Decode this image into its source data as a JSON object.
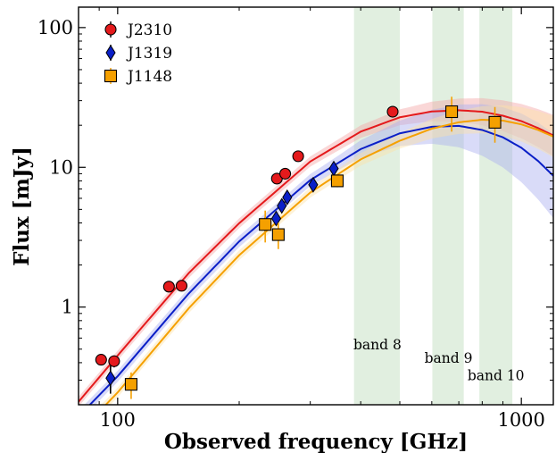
{
  "chart_data": {
    "type": "scatter",
    "xlabel": "Observed frequency [GHz]",
    "ylabel": "Flux [mJy]",
    "xscale": "log",
    "yscale": "log",
    "xlim": [
      80,
      1200
    ],
    "ylim": [
      0.2,
      140
    ],
    "x_ticks": [
      {
        "value": 100,
        "label": "100"
      },
      {
        "value": 1000,
        "label": "1000"
      }
    ],
    "y_ticks": [
      {
        "value": 1,
        "label": "1"
      },
      {
        "value": 10,
        "label": "10"
      },
      {
        "value": 100,
        "label": "100"
      }
    ],
    "legend_position": "top-left",
    "bands": [
      {
        "name": "band 8",
        "x_range": [
          385,
          500
        ],
        "label_x": 440,
        "label_y": 0.5
      },
      {
        "name": "band 9",
        "x_range": [
          602,
          720
        ],
        "label_x": 660,
        "label_y": 0.4
      },
      {
        "name": "band 10",
        "x_range": [
          787,
          950
        ],
        "label_x": 865,
        "label_y": 0.3
      }
    ],
    "series": [
      {
        "name": "J2310",
        "marker": "circle",
        "color": "#e41a1c",
        "points": [
          {
            "x": 91,
            "y": 0.42,
            "yerr": 0.03
          },
          {
            "x": 98,
            "y": 0.41,
            "yerr": 0.04
          },
          {
            "x": 134,
            "y": 1.4,
            "yerr": 0.08
          },
          {
            "x": 144,
            "y": 1.42,
            "yerr": 0.08
          },
          {
            "x": 248,
            "y": 8.3,
            "yerr": 0.4
          },
          {
            "x": 260,
            "y": 9.0,
            "yerr": 0.4
          },
          {
            "x": 280,
            "y": 12.0,
            "yerr": 0.5
          },
          {
            "x": 480,
            "y": 25.0,
            "yerr": 1.0
          }
        ],
        "model": [
          [
            80,
            0.21
          ],
          [
            100,
            0.45
          ],
          [
            150,
            1.75
          ],
          [
            200,
            3.98
          ],
          [
            300,
            11.0
          ],
          [
            400,
            18.0
          ],
          [
            500,
            22.8
          ],
          [
            600,
            25.1
          ],
          [
            700,
            25.6
          ],
          [
            800,
            25.0
          ],
          [
            900,
            23.4
          ],
          [
            1000,
            21.4
          ],
          [
            1100,
            19.1
          ],
          [
            1200,
            16.9
          ]
        ]
      },
      {
        "name": "J1319",
        "marker": "diamond",
        "color": "#0a1fc7",
        "points": [
          {
            "x": 96,
            "y": 0.31,
            "yerr": 0.07
          },
          {
            "x": 232,
            "y": 3.9,
            "yerr": 0.3
          },
          {
            "x": 247,
            "y": 4.3,
            "yerr": 0.3
          },
          {
            "x": 255,
            "y": 5.3,
            "yerr": 0.3
          },
          {
            "x": 263,
            "y": 6.1,
            "yerr": 0.3
          },
          {
            "x": 305,
            "y": 7.5,
            "yerr": 0.4
          },
          {
            "x": 343,
            "y": 9.8,
            "yerr": 0.4
          }
        ],
        "model": [
          [
            80,
            0.165
          ],
          [
            100,
            0.32
          ],
          [
            150,
            1.25
          ],
          [
            200,
            2.95
          ],
          [
            300,
            8.1
          ],
          [
            400,
            13.5
          ],
          [
            500,
            17.5
          ],
          [
            600,
            19.5
          ],
          [
            700,
            19.8
          ],
          [
            800,
            18.5
          ],
          [
            900,
            16.4
          ],
          [
            1000,
            13.8
          ],
          [
            1100,
            11.1
          ],
          [
            1200,
            8.7
          ]
        ]
      },
      {
        "name": "J1148",
        "marker": "square",
        "color": "#f5a000",
        "points": [
          {
            "x": 108,
            "y": 0.28,
            "yerr": 0.06
          },
          {
            "x": 232,
            "y": 3.9,
            "yerr": 1.0
          },
          {
            "x": 250,
            "y": 3.3,
            "yerr": 0.7
          },
          {
            "x": 350,
            "y": 8.0,
            "yerr": 0.8
          },
          {
            "x": 672,
            "y": 25.0,
            "yerr": 7.0
          },
          {
            "x": 860,
            "y": 21.0,
            "yerr": 6.0
          }
        ],
        "model": [
          [
            80,
            0.125
          ],
          [
            100,
            0.245
          ],
          [
            150,
            0.98
          ],
          [
            200,
            2.35
          ],
          [
            300,
            6.6
          ],
          [
            400,
            11.4
          ],
          [
            500,
            15.5
          ],
          [
            600,
            18.9
          ],
          [
            700,
            21.0
          ],
          [
            800,
            21.9
          ],
          [
            900,
            21.6
          ],
          [
            1000,
            20.3
          ],
          [
            1100,
            18.5
          ],
          [
            1200,
            16.6
          ]
        ]
      }
    ],
    "band_color": "#bcdcba",
    "model_band_fill": {
      "J2310": "#f4a6a6",
      "J1319": "#aab0f0",
      "J1148": "#fde3a7"
    }
  }
}
